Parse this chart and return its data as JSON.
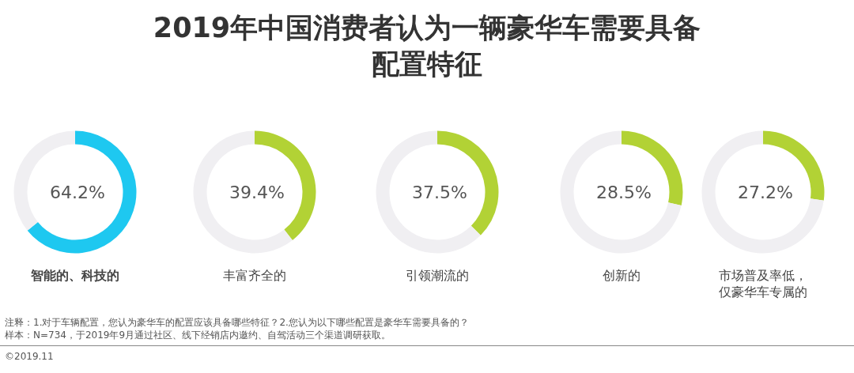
{
  "chart_data": [
    {
      "type": "donut",
      "xlabel": "智能的、科技的",
      "categories": [
        null,
        null
      ],
      "values": [
        64.2,
        35.8
      ],
      "colors": [
        "#1ec8f0",
        "#f0eff2"
      ],
      "value_labels": [
        "64.2%",
        null
      ]
    },
    {
      "type": "donut",
      "xlabel": "丰富齐全的",
      "categories": [
        null,
        null
      ],
      "values": [
        39.4,
        60.6
      ],
      "colors": [
        "#b2d235",
        "#f0eff2"
      ],
      "value_labels": [
        "39.4%",
        null
      ]
    },
    {
      "type": "donut",
      "title": "2019年中国消费者认为一辆豪华车需要具备配置特征",
      "xlabel": "引领潮流的",
      "categories": [
        null,
        null
      ],
      "values": [
        37.5,
        62.5
      ],
      "colors": [
        "#b2d235",
        "#f0eff2"
      ],
      "value_labels": [
        "37.5%",
        null
      ]
    },
    {
      "type": "donut",
      "xlabel": "创新的",
      "categories": [
        null,
        null
      ],
      "values": [
        28.5,
        71.5
      ],
      "colors": [
        "#b2d235",
        "#f0eff2"
      ],
      "value_labels": [
        "28.5%",
        null
      ]
    },
    {
      "type": "donut",
      "xlabel": "市场普及率低，仅豪华车专属的",
      "categories": [
        null,
        null
      ],
      "values": [
        27.2,
        72.8
      ],
      "colors": [
        "#b2d235",
        "#f0eff2"
      ],
      "value_labels": [
        "27.2%",
        null
      ],
      "annotations": [
        "注释：1.对于车辆配置，您认为豪华车的配置应该具备哪些特征？2.您认为以下哪些配置是豪华车需要具备的？",
        "样本：N=734，于2019年9月通过社区、线下经销店内邀约、自驾活动三个渠道调研获取。",
        "©2019.11"
      ]
    }
  ]
}
